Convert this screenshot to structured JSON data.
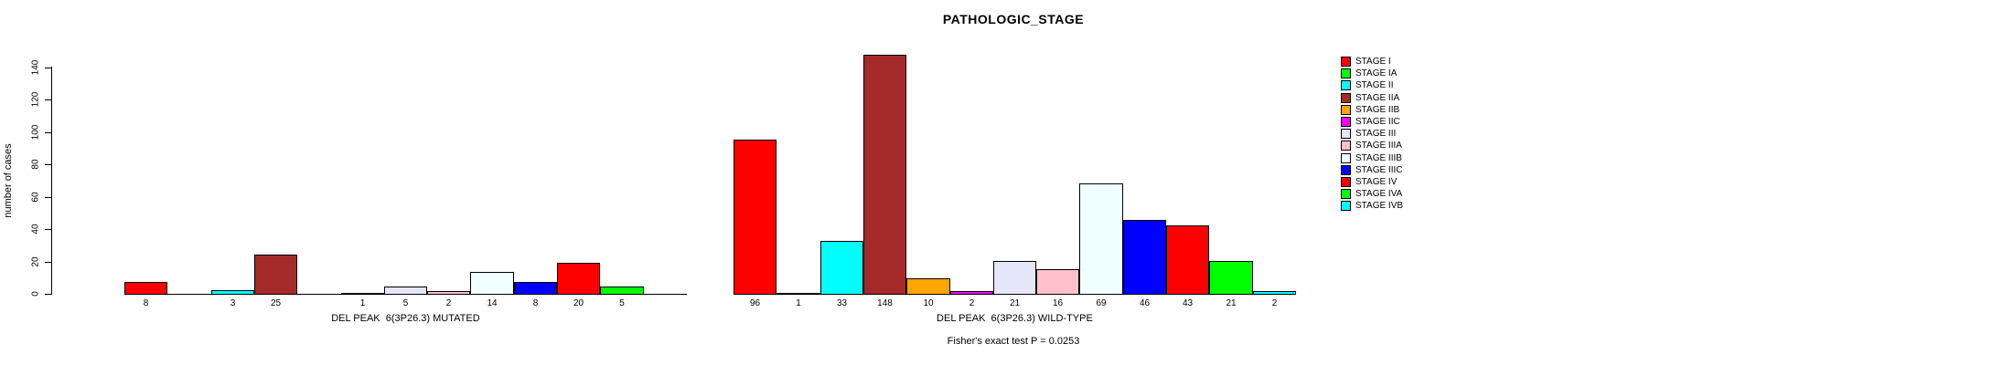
{
  "title": "PATHOLOGIC_STAGE",
  "annotation": "Fisher's exact test P = 0.0253",
  "legend": {
    "position": "right",
    "entries": [
      {
        "label": "STAGE I",
        "color": "#FF0000"
      },
      {
        "label": "STAGE IA",
        "color": "#00FF00"
      },
      {
        "label": "STAGE II",
        "color": "#00FFFF"
      },
      {
        "label": "STAGE IIA",
        "color": "#A52A2A"
      },
      {
        "label": "STAGE IIB",
        "color": "#FFA500"
      },
      {
        "label": "STAGE IIC",
        "color": "#FF00FF"
      },
      {
        "label": "STAGE III",
        "color": "#E6E6FA"
      },
      {
        "label": "STAGE IIIA",
        "color": "#FFC0CB"
      },
      {
        "label": "STAGE IIIB",
        "color": "#F0FFFF"
      },
      {
        "label": "STAGE IIIC",
        "color": "#0000FF"
      },
      {
        "label": "STAGE IV",
        "color": "#FF0000"
      },
      {
        "label": "STAGE IVA",
        "color": "#00FF00"
      },
      {
        "label": "STAGE IVB",
        "color": "#00FFFF"
      }
    ]
  },
  "chart_data": [
    {
      "type": "bar",
      "title": "PATHOLOGIC_STAGE",
      "xlabel": "DEL PEAK  6(3P26.3) MUTATED",
      "ylabel": "number of cases",
      "ylim": [
        0,
        140
      ],
      "yticks": [
        0,
        20,
        40,
        60,
        80,
        100,
        120,
        140
      ],
      "grid": false,
      "legend_position": "right",
      "categories": [
        "STAGE I",
        "STAGE IA",
        "STAGE II",
        "STAGE IIA",
        "STAGE IIB",
        "STAGE IIC",
        "STAGE III",
        "STAGE IIIA",
        "STAGE IIIB",
        "STAGE IIIC",
        "STAGE IV",
        "STAGE IVA",
        "STAGE IVB"
      ],
      "values": [
        8,
        0,
        3,
        25,
        0,
        1,
        5,
        2,
        14,
        8,
        20,
        5,
        0
      ],
      "colors": [
        "#FF0000",
        "#00FF00",
        "#00FFFF",
        "#A52A2A",
        "#FFA500",
        "#FF00FF",
        "#E6E6FA",
        "#FFC0CB",
        "#F0FFFF",
        "#0000FF",
        "#FF0000",
        "#00FF00",
        "#00FFFF"
      ]
    },
    {
      "type": "bar",
      "xlabel": "DEL PEAK  6(3P26.3) WILD-TYPE",
      "ylim": [
        0,
        140
      ],
      "grid": false,
      "categories": [
        "STAGE I",
        "STAGE IA",
        "STAGE II",
        "STAGE IIA",
        "STAGE IIB",
        "STAGE IIC",
        "STAGE III",
        "STAGE IIIA",
        "STAGE IIIB",
        "STAGE IIIC",
        "STAGE IV",
        "STAGE IVA",
        "STAGE IVB"
      ],
      "values": [
        96,
        1,
        33,
        148,
        10,
        2,
        21,
        16,
        69,
        46,
        43,
        21,
        2
      ],
      "colors": [
        "#FF0000",
        "#00FF00",
        "#00FFFF",
        "#A52A2A",
        "#FFA500",
        "#FF00FF",
        "#E6E6FA",
        "#FFC0CB",
        "#F0FFFF",
        "#0000FF",
        "#FF0000",
        "#00FF00",
        "#00FFFF"
      ]
    }
  ]
}
